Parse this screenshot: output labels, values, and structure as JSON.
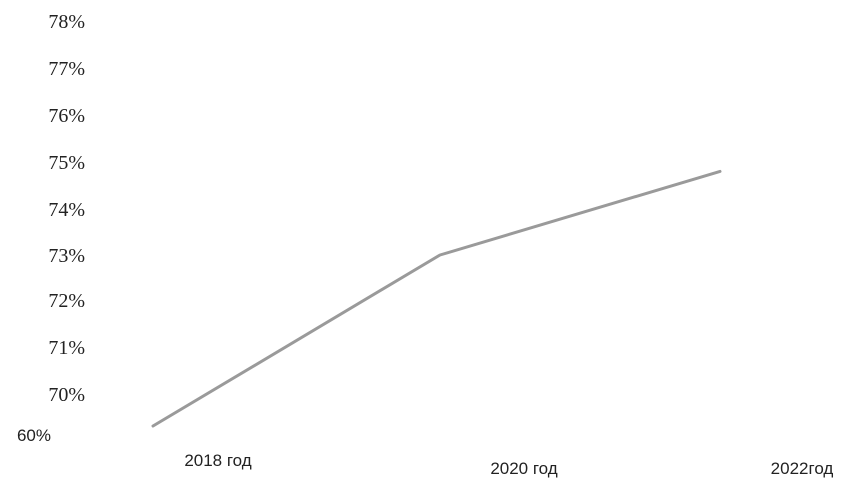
{
  "chart_data": {
    "type": "line",
    "y_tick_labels": [
      "78%",
      "77%",
      "76%",
      "75%",
      "74%",
      "73%",
      "72%",
      "71%",
      "70%",
      "60%"
    ],
    "x_tick_labels": [
      "2018 год",
      "2020 год",
      "2022год"
    ],
    "series": [
      {
        "values": [
          60,
          73,
          74.8
        ]
      }
    ],
    "line_color": "#9a9a9a"
  }
}
